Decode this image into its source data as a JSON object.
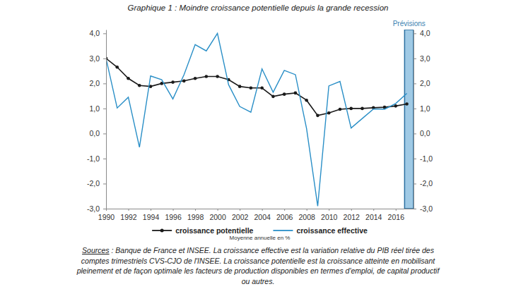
{
  "chart_data": {
    "type": "line",
    "title": "Graphique 1 : Moindre croissance potentielle depuis la grande recession",
    "y_label": "Moyenne annuelle en %",
    "x": [
      1990,
      1991,
      1992,
      1993,
      1994,
      1995,
      1996,
      1997,
      1998,
      1999,
      2000,
      2001,
      2002,
      2003,
      2004,
      2005,
      2006,
      2007,
      2008,
      2009,
      2010,
      2011,
      2012,
      2013,
      2014,
      2015,
      2016,
      2017
    ],
    "series": [
      {
        "name": "croissance potentielle",
        "color": "#1a1a1a",
        "marker": "circle",
        "line_style": "solid",
        "values": [
          3.0,
          2.65,
          2.2,
          1.92,
          1.88,
          2.0,
          2.05,
          2.1,
          2.2,
          2.28,
          2.28,
          2.15,
          1.88,
          1.82,
          1.82,
          1.48,
          1.57,
          1.62,
          1.33,
          0.72,
          0.82,
          0.97,
          1.0,
          1.0,
          1.03,
          1.05,
          1.1,
          1.18
        ]
      },
      {
        "name": "croissance effective",
        "color": "#2a8fc7",
        "marker": "none",
        "line_style": "solid",
        "values": [
          3.0,
          1.02,
          1.45,
          -0.55,
          2.3,
          2.15,
          1.38,
          2.35,
          3.55,
          3.3,
          4.0,
          1.95,
          1.08,
          0.85,
          2.58,
          1.65,
          2.52,
          2.35,
          0.2,
          -2.9,
          1.9,
          2.08,
          0.22,
          0.6,
          0.98,
          0.97,
          1.2,
          1.6
        ]
      }
    ],
    "xlim": [
      1990,
      2017.6
    ],
    "xticks": [
      1990,
      1992,
      1994,
      1996,
      1998,
      2000,
      2002,
      2004,
      2006,
      2008,
      2010,
      2012,
      2014,
      2016
    ],
    "ylim": [
      -3,
      4.15
    ],
    "yticks": [
      {
        "value": -3,
        "label": "-3,0"
      },
      {
        "value": -2,
        "label": "-2,0"
      },
      {
        "value": -1,
        "label": "-1,0"
      },
      {
        "value": 0,
        "label": "0,0"
      },
      {
        "value": 1,
        "label": "1,0"
      },
      {
        "value": 2,
        "label": "2,0"
      },
      {
        "value": 3,
        "label": "3,0"
      },
      {
        "value": 4,
        "label": "4,0"
      }
    ],
    "y2lim": [
      -3,
      4.15
    ],
    "y2ticks": [
      {
        "value": -3,
        "label": "-3,0"
      },
      {
        "value": -2,
        "label": "-2,0"
      },
      {
        "value": -1,
        "label": "-1,0"
      },
      {
        "value": 0,
        "label": "0,0"
      },
      {
        "value": 1,
        "label": "1,0"
      },
      {
        "value": 2,
        "label": "2,0"
      },
      {
        "value": 3,
        "label": "3,0"
      },
      {
        "value": 4,
        "label": "4,0"
      }
    ],
    "grid": false,
    "legend": "bottom",
    "annotations": [
      {
        "text": "Prévisions",
        "x0": 2016.8,
        "x1": 2017.6,
        "color": "#8fc1e0"
      }
    ],
    "source": {
      "label": "Sources",
      "lines": [
        " : Banque de France et INSEE. La croissance effective est la variation relative du PIB réel tirée des",
        "comptes trimestriels CVS-CJO de l'INSEE. La croissance potentielle est la croissance atteinte en mobilisant",
        "pleinement et de façon optimale les facteurs de production disponibles en termes d'emploi, de capital productif",
        "ou autres."
      ]
    }
  }
}
